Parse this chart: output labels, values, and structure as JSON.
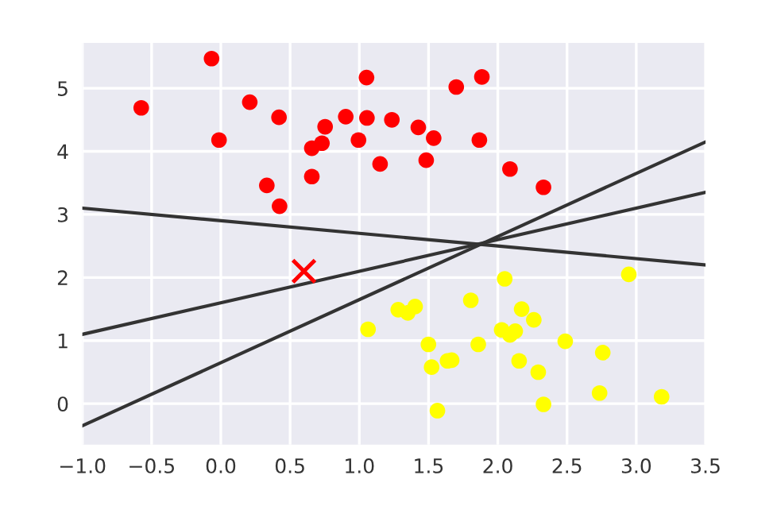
{
  "chart_data": {
    "type": "scatter",
    "xlim": [
      -1.0,
      3.5
    ],
    "ylim": [
      -0.65,
      5.72
    ],
    "xticks": [
      {
        "value": -1.0,
        "label": "−1.0"
      },
      {
        "value": -0.5,
        "label": "−0.5"
      },
      {
        "value": 0.0,
        "label": "0.0"
      },
      {
        "value": 0.5,
        "label": "0.5"
      },
      {
        "value": 1.0,
        "label": "1.0"
      },
      {
        "value": 1.5,
        "label": "1.5"
      },
      {
        "value": 2.0,
        "label": "2.0"
      },
      {
        "value": 2.5,
        "label": "2.5"
      },
      {
        "value": 3.0,
        "label": "3.0"
      },
      {
        "value": 3.5,
        "label": "3.5"
      }
    ],
    "yticks": [
      0,
      1,
      2,
      3,
      4,
      5
    ],
    "grid": true,
    "series": [
      {
        "color": "#ff0000",
        "marker": "circle",
        "x": [
          -0.575,
          -0.067,
          -0.013,
          0.209,
          0.42,
          0.332,
          0.424,
          0.657,
          0.73,
          0.753,
          0.657,
          0.902,
          0.994,
          1.052,
          1.055,
          1.15,
          1.235,
          1.426,
          1.537,
          1.483,
          1.7,
          1.885,
          1.867,
          2.088,
          2.33
        ],
        "values": [
          4.69,
          5.47,
          4.18,
          4.78,
          4.54,
          3.46,
          3.13,
          4.05,
          4.13,
          4.39,
          3.6,
          4.55,
          4.18,
          5.17,
          4.53,
          3.8,
          4.5,
          4.38,
          4.21,
          3.86,
          5.02,
          5.18,
          4.18,
          3.72,
          3.43
        ]
      },
      {
        "color": "#ffff00",
        "marker": "circle",
        "x": [
          2.05,
          2.946,
          1.805,
          1.281,
          1.35,
          1.403,
          1.063,
          2.172,
          2.26,
          2.028,
          2.088,
          2.126,
          1.499,
          1.859,
          2.487,
          2.758,
          1.522,
          1.637,
          1.667,
          2.154,
          2.292,
          1.564,
          2.33,
          2.735,
          3.183
        ],
        "values": [
          1.98,
          2.05,
          1.64,
          1.49,
          1.44,
          1.54,
          1.18,
          1.5,
          1.33,
          1.17,
          1.09,
          1.15,
          0.94,
          0.94,
          0.99,
          0.81,
          0.58,
          0.68,
          0.69,
          0.68,
          0.5,
          -0.11,
          -0.01,
          0.17,
          0.11
        ]
      },
      {
        "color": "#ff0000",
        "marker": "cross",
        "x": [
          0.6
        ],
        "values": [
          2.1
        ]
      },
      {
        "type": "line",
        "color": "#333333",
        "x": [
          -1.0,
          3.5
        ],
        "values": [
          -0.35,
          4.15
        ]
      },
      {
        "type": "line",
        "color": "#333333",
        "x": [
          -1.0,
          3.5
        ],
        "values": [
          1.1,
          3.35
        ]
      },
      {
        "type": "line",
        "color": "#333333",
        "x": [
          -1.0,
          3.5
        ],
        "values": [
          3.1,
          2.2
        ]
      }
    ]
  }
}
